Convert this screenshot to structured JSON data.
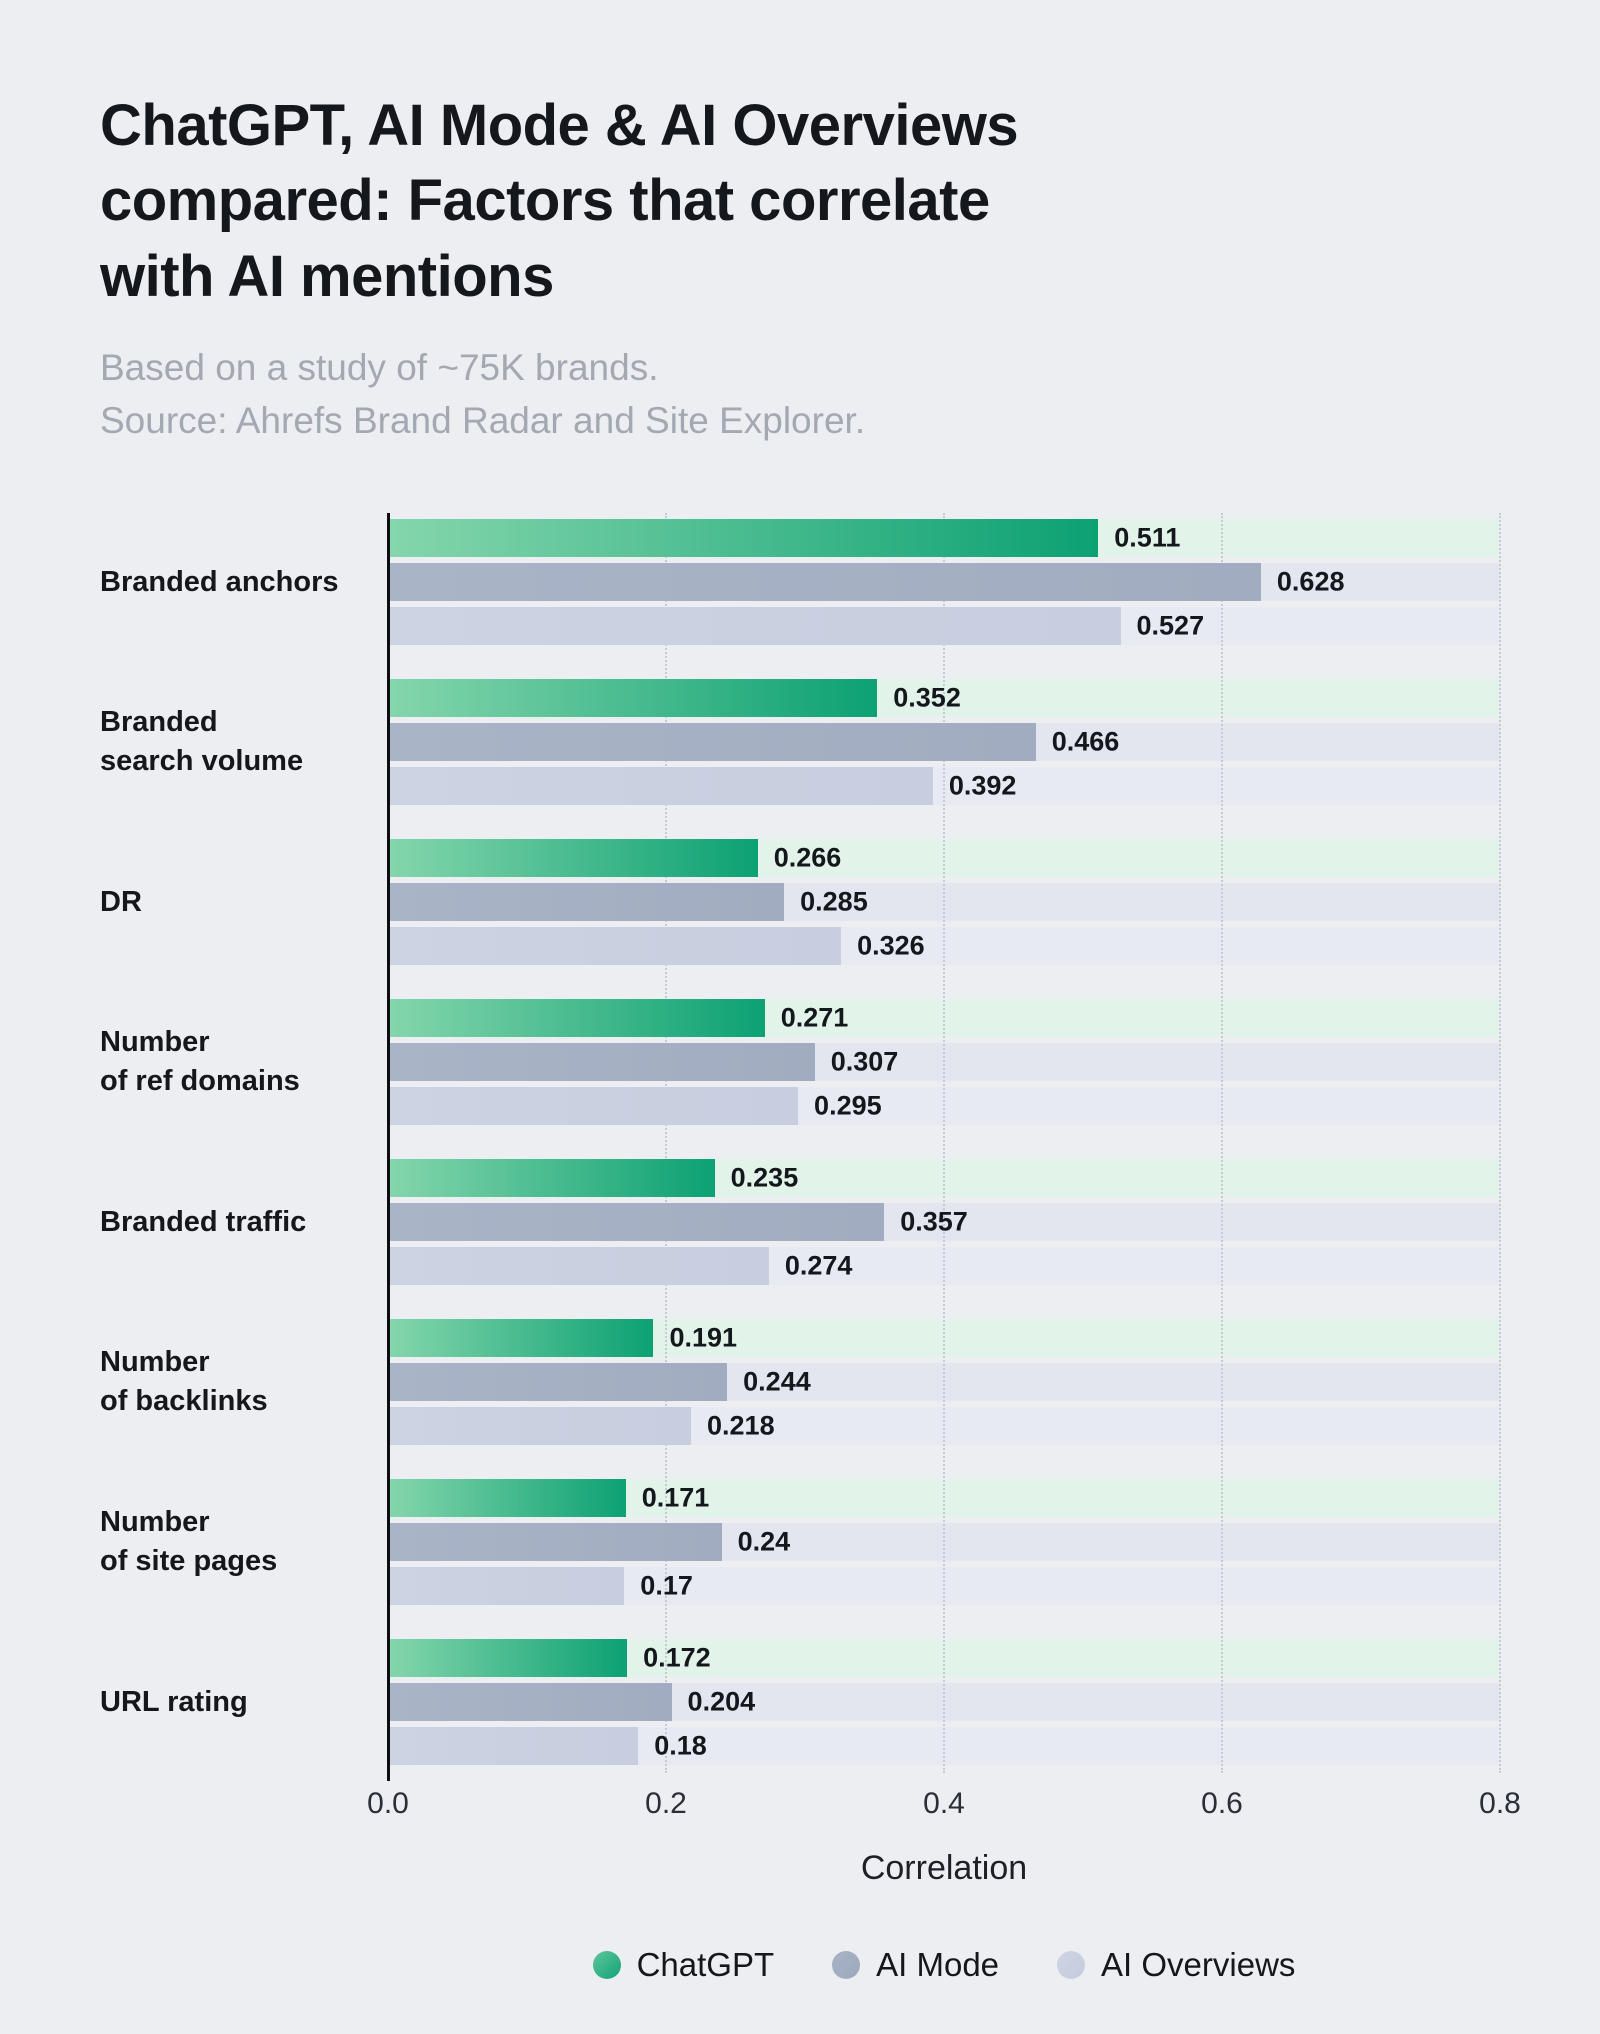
{
  "header": {
    "title": "ChatGPT, AI Mode & AI Overviews\ncompared: Factors that correlate\nwith AI mentions",
    "subtitle": "Based on a study of ~75K brands.\nSource: Ahrefs Brand Radar and Site Explorer."
  },
  "chart_data": {
    "type": "bar",
    "orientation": "horizontal",
    "title": "ChatGPT, AI Mode & AI Overviews compared: Factors that correlate with AI mentions",
    "subtitle": "Based on a study of ~75K brands. Source: Ahrefs Brand Radar and Site Explorer.",
    "xlabel": "Correlation",
    "xlim": [
      0,
      0.8
    ],
    "xticks": [
      "0.0",
      "0.2",
      "0.4",
      "0.6",
      "0.8"
    ],
    "grid": "vertical-dotted",
    "legend_position": "bottom",
    "categories": [
      "Branded anchors",
      "Branded\nsearch volume",
      "DR",
      "Number\nof ref domains",
      "Branded traffic",
      "Number\nof backlinks",
      "Number\nof site pages",
      "URL rating"
    ],
    "series": [
      {
        "name": "ChatGPT",
        "values": [
          0.511,
          0.352,
          0.266,
          0.271,
          0.235,
          0.191,
          0.171,
          0.172
        ],
        "labels": [
          "0.511",
          "0.352",
          "0.266",
          "0.271",
          "0.235",
          "0.191",
          "0.171",
          "0.172"
        ],
        "bar_color_start": "#85d6ac",
        "bar_color_end": "#0ca173",
        "track_color": "#e2f4e9"
      },
      {
        "name": "AI Mode",
        "values": [
          0.628,
          0.466,
          0.285,
          0.307,
          0.357,
          0.244,
          0.24,
          0.204
        ],
        "labels": [
          "0.628",
          "0.466",
          "0.285",
          "0.307",
          "0.357",
          "0.244",
          "0.24",
          "0.204"
        ],
        "bar_color_start": "#aab4c7",
        "bar_color_end": "#a2acc0",
        "track_color": "#e3e6ee"
      },
      {
        "name": "AI Overviews",
        "values": [
          0.527,
          0.392,
          0.326,
          0.295,
          0.274,
          0.218,
          0.17,
          0.18
        ],
        "labels": [
          "0.527",
          "0.392",
          "0.326",
          "0.295",
          "0.274",
          "0.218",
          "0.17",
          "0.18"
        ],
        "bar_color_start": "#ccd4e3",
        "bar_color_end": "#c6cedf",
        "track_color": "#e7eaf2"
      }
    ]
  },
  "legend": {
    "items": [
      {
        "label": "ChatGPT",
        "color_start": "#5ec79c",
        "color_end": "#13a276"
      },
      {
        "label": "AI Mode",
        "color_start": "#a8b2c5",
        "color_end": "#9fa9bf"
      },
      {
        "label": "AI Overviews",
        "color_start": "#ced6e4",
        "color_end": "#c3cbdd"
      }
    ]
  }
}
